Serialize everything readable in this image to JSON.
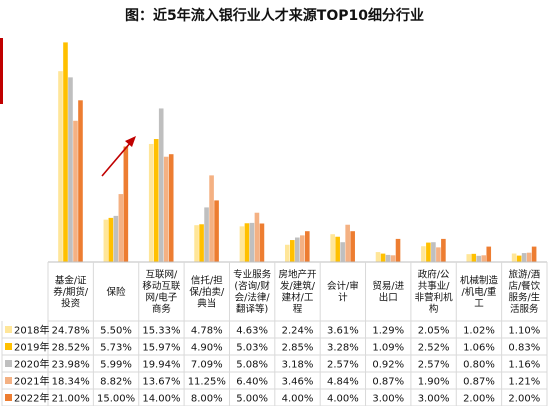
{
  "chart_data": {
    "type": "bar",
    "title": "图：近5年流入银行业人才来源TOP10细分行业",
    "ylabel": "",
    "xlabel": "",
    "ylim": [
      0,
      30
    ],
    "grid": false,
    "legend": "table-left",
    "categories": [
      [
        "基金/证",
        "券/期货/",
        "投资"
      ],
      [
        "保险"
      ],
      [
        "互联网/",
        "移动互联",
        "网/电子",
        "商务"
      ],
      [
        "信托/担",
        "保/拍卖/",
        "典当"
      ],
      [
        "专业服务",
        "(咨询/财",
        "会/法律/",
        "翻译等)"
      ],
      [
        "房地产开",
        "发/建筑/",
        "建材/工",
        "程"
      ],
      [
        "会计/审",
        "计"
      ],
      [
        "贸易/进",
        "出口"
      ],
      [
        "政府/公",
        "共事业/",
        "非营利机",
        "构"
      ],
      [
        "机械制造",
        "/机电/重",
        "工"
      ],
      [
        "旅游/酒",
        "店/餐饮",
        "服务/生",
        "活服务"
      ]
    ],
    "series": [
      {
        "name": "2018年",
        "color": "#ffe699",
        "values": [
          24.78,
          5.5,
          15.33,
          4.78,
          4.63,
          2.24,
          3.61,
          1.29,
          2.05,
          1.02,
          1.1
        ],
        "labels": [
          "24.78%",
          "5.50%",
          "15.33%",
          "4.78%",
          "4.63%",
          "2.24%",
          "3.61%",
          "1.29%",
          "2.05%",
          "1.02%",
          "1.10%"
        ]
      },
      {
        "name": "2019年",
        "color": "#ffc000",
        "values": [
          28.52,
          5.73,
          15.97,
          4.9,
          5.03,
          2.85,
          3.28,
          1.09,
          2.52,
          1.06,
          0.83
        ],
        "labels": [
          "28.52%",
          "5.73%",
          "15.97%",
          "4.90%",
          "5.03%",
          "2.85%",
          "3.28%",
          "1.09%",
          "2.52%",
          "1.06%",
          "0.83%"
        ]
      },
      {
        "name": "2020年",
        "color": "#bfbfbf",
        "values": [
          23.98,
          5.99,
          19.94,
          7.09,
          5.08,
          3.18,
          2.57,
          0.92,
          2.57,
          0.8,
          1.16
        ],
        "labels": [
          "23.98%",
          "5.99%",
          "19.94%",
          "7.09%",
          "5.08%",
          "3.18%",
          "2.57%",
          "0.92%",
          "2.57%",
          "0.80%",
          "1.16%"
        ]
      },
      {
        "name": "2021年",
        "color": "#f4b183",
        "values": [
          18.34,
          8.82,
          13.67,
          11.25,
          6.4,
          3.46,
          4.84,
          0.87,
          1.9,
          0.87,
          1.21
        ],
        "labels": [
          "18.34%",
          "8.82%",
          "13.67%",
          "11.25%",
          "6.40%",
          "3.46%",
          "4.84%",
          "0.87%",
          "1.90%",
          "0.87%",
          "1.21%"
        ]
      },
      {
        "name": "2022年",
        "color": "#ed7d31",
        "values": [
          21.0,
          15.0,
          14.0,
          8.0,
          5.0,
          4.0,
          4.0,
          3.0,
          3.0,
          2.0,
          2.0
        ],
        "labels": [
          "21.00%",
          "15.00%",
          "14.00%",
          "8.00%",
          "5.00%",
          "4.00%",
          "4.00%",
          "3.00%",
          "3.00%",
          "2.00%",
          "2.00%"
        ]
      }
    ],
    "annotations": [
      {
        "type": "arrow",
        "color": "#c00000",
        "near_category": "保险"
      }
    ]
  }
}
